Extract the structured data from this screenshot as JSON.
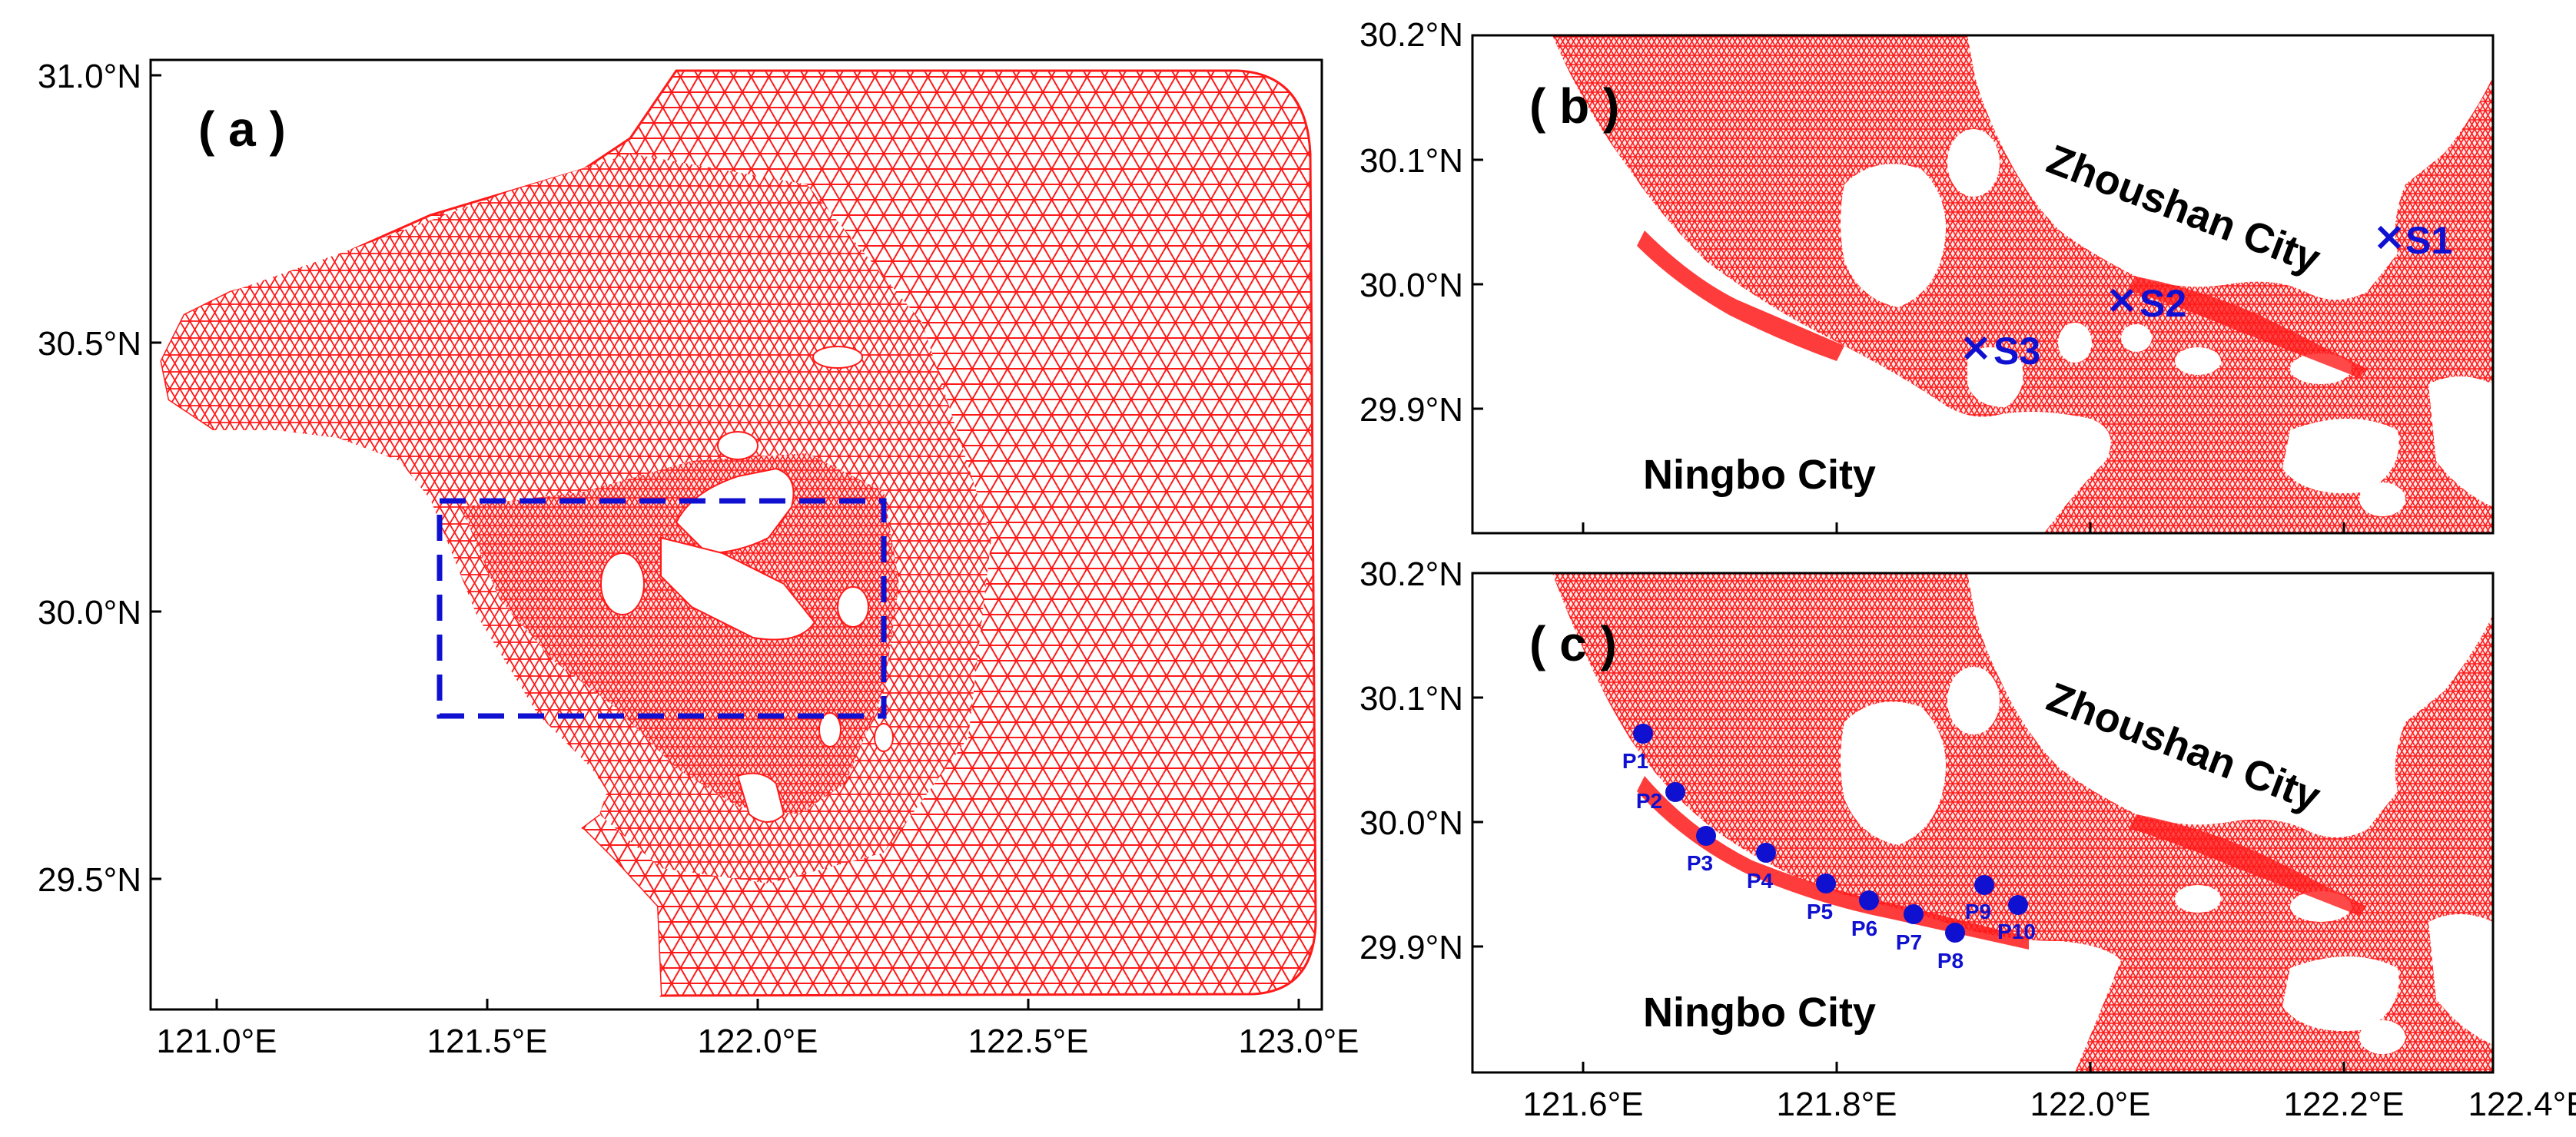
{
  "panels": {
    "a": {
      "label": "( a )",
      "x_ticks": [
        "121.0°E",
        "121.5°E",
        "122.0°E",
        "122.5°E",
        "123.0°E"
      ],
      "y_ticks": [
        "31.0°N",
        "30.5°N",
        "30.0°N",
        "29.5°N"
      ]
    },
    "b": {
      "label": "( b )",
      "y_ticks": [
        "30.2°N",
        "30.1°N",
        "30.0°N",
        "29.9°N"
      ],
      "city_north": "Zhoushan City",
      "city_south": "Ningbo City",
      "stations": [
        "S1",
        "S2",
        "S3"
      ]
    },
    "c": {
      "label": "( c )",
      "x_ticks": [
        "121.6°E",
        "121.8°E",
        "122.0°E",
        "122.2°E",
        "122.4°E"
      ],
      "y_ticks": [
        "30.2°N",
        "30.1°N",
        "30.0°N",
        "29.9°N"
      ],
      "city_north": "Zhoushan City",
      "city_south": "Ningbo City",
      "points": [
        "P1",
        "P2",
        "P3",
        "P4",
        "P5",
        "P6",
        "P7",
        "P8",
        "P9",
        "P10"
      ]
    }
  },
  "colors": {
    "mesh": "#ff1a1a",
    "marker": "#1010d0",
    "frame": "#000000"
  }
}
